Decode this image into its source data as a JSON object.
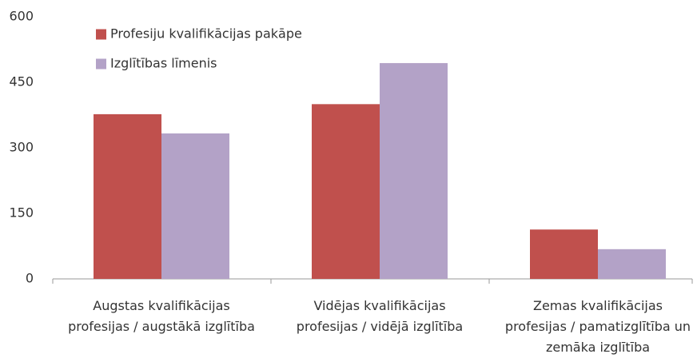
{
  "chart_data": {
    "type": "bar",
    "categories": [
      "Augstas kvalifikācijas profesijas / augstākā izglītība",
      "Vidējas kvalifikācijas profesijas / vidējā izglītība",
      "Zemas kvalifikācijas profesijas / pamatizglītība un zemāka izglītība"
    ],
    "series": [
      {
        "name": "Profesiju kvalifikācijas pakāpe",
        "color": "#c0504d",
        "values": [
          377,
          400,
          113
        ]
      },
      {
        "name": "Izglītības līmenis",
        "color": "#b3a2c7",
        "values": [
          333,
          494,
          68
        ]
      }
    ],
    "ylim": [
      0,
      600
    ],
    "yticks": [
      0,
      150,
      300,
      450,
      600
    ],
    "grid": false,
    "legend": "top-left"
  }
}
